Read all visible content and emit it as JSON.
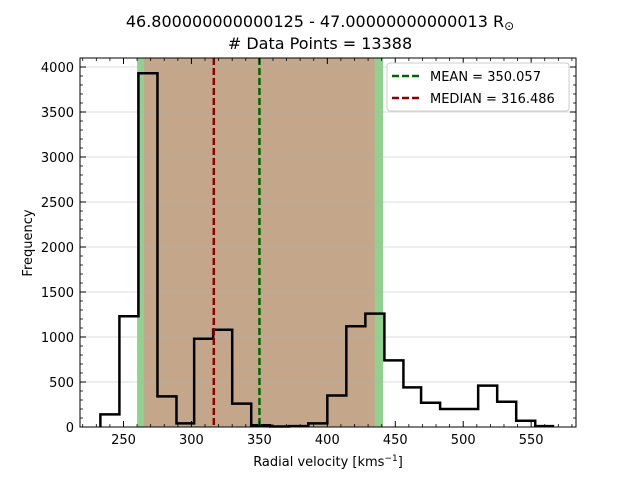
{
  "chart_data": {
    "type": "histogram",
    "title_line1": "46.800000000000125 - 47.00000000000013 R",
    "title_sun": "⊙",
    "title_line2": "# Data Points = 13388",
    "xlabel_main": "Radial velocity [kms",
    "xlabel_sup": "−1",
    "xlabel_end": "]",
    "ylabel": "Frequency",
    "xlim": [
      218,
      583
    ],
    "ylim": [
      0,
      4100
    ],
    "xticks": [
      250,
      300,
      350,
      400,
      450,
      500,
      550
    ],
    "yticks": [
      0,
      500,
      1000,
      1500,
      2000,
      2500,
      3000,
      3500,
      4000
    ],
    "grid": "horizontal",
    "bin_edges": [
      233,
      247,
      261,
      275,
      289,
      302,
      316,
      330,
      344,
      358,
      372,
      386,
      400,
      414,
      428,
      442,
      456,
      469,
      483,
      497,
      511,
      525,
      539,
      553,
      566
    ],
    "counts": [
      140,
      1230,
      3930,
      340,
      40,
      980,
      1080,
      260,
      20,
      5,
      10,
      40,
      350,
      1120,
      1260,
      740,
      440,
      270,
      200,
      200,
      460,
      280,
      70,
      10
    ],
    "bands": {
      "outer": [
        260,
        441
      ],
      "inner": [
        265,
        435
      ],
      "outer_color": "#8fd18f",
      "inner_color": "#c4a78b"
    },
    "mean": {
      "label": "MEAN = 350.057",
      "value": 350.057,
      "color": "#006400"
    },
    "median": {
      "label": "MEDIAN = 316.486",
      "value": 316.486,
      "color": "#8b0000"
    },
    "legend_position": "upper-right",
    "step_color": "#000000"
  }
}
